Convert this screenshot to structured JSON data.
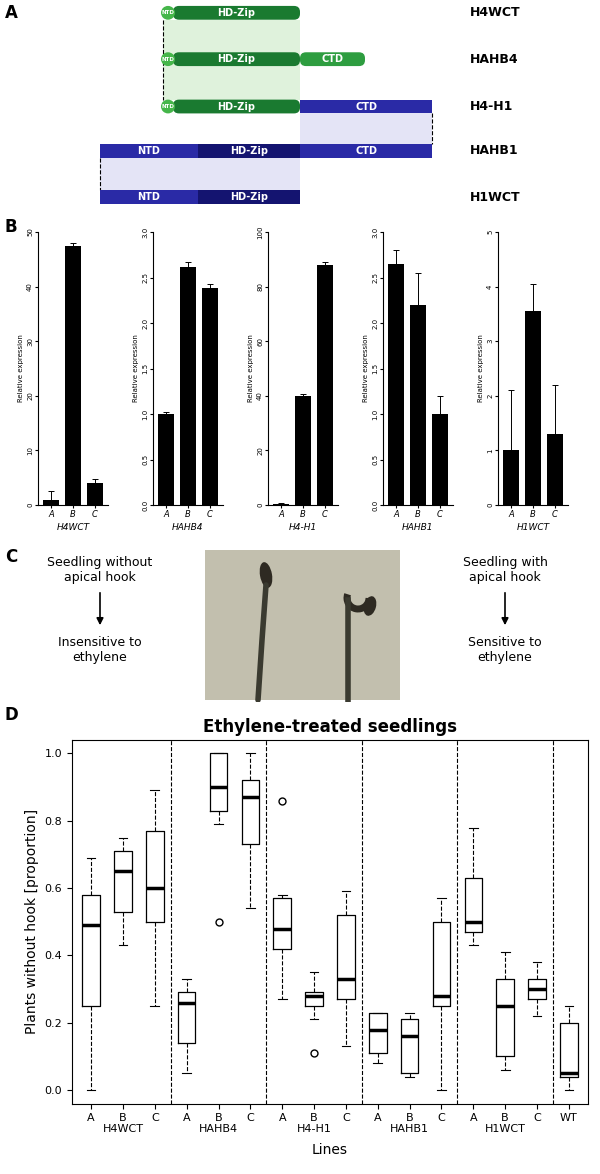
{
  "panel_labels": [
    "A",
    "B",
    "C",
    "D"
  ],
  "diagram": {
    "constructs": [
      {
        "name": "H4WCT",
        "domains": [
          {
            "label": "NTD",
            "color": "#45b64a"
          },
          {
            "label": "HD-Zip",
            "color": "#1a7a30"
          }
        ]
      },
      {
        "name": "HAHB4",
        "domains": [
          {
            "label": "NTD",
            "color": "#45b64a"
          },
          {
            "label": "HD-Zip",
            "color": "#1a7a30"
          },
          {
            "label": "CTD",
            "color": "#2e9d40"
          }
        ]
      },
      {
        "name": "H4-H1",
        "domains": [
          {
            "label": "NTD",
            "color": "#45b64a"
          },
          {
            "label": "HD-Zip",
            "color": "#1a7a30"
          },
          {
            "label": "CTD",
            "color": "#2a2aa6"
          }
        ]
      },
      {
        "name": "HAHB1",
        "domains": [
          {
            "label": "NTD",
            "color": "#2a2aa6"
          },
          {
            "label": "HD-Zip",
            "color": "#141470"
          },
          {
            "label": "CTD",
            "color": "#2a2aa6"
          }
        ]
      },
      {
        "name": "H1WCT",
        "domains": [
          {
            "label": "NTD",
            "color": "#2a2aa6"
          },
          {
            "label": "HD-Zip",
            "color": "#141470"
          }
        ]
      }
    ]
  },
  "seedling_panel": {
    "left": {
      "caption": "Seedling without\napical hook",
      "result": "Insensitive to\nethylene"
    },
    "right": {
      "caption": "Seedling with\napical hook",
      "result": "Sensitive to\nethylene"
    }
  },
  "chart_data": [
    {
      "type": "bar",
      "x_label": "H4WCT",
      "y_label": "Relative expression",
      "categories": [
        "A",
        "B",
        "C"
      ],
      "values": [
        1.0,
        47.5,
        4.0
      ],
      "errors": [
        1.5,
        0.5,
        0.8
      ],
      "color": "#000000",
      "ylim": [
        0,
        50
      ],
      "yticks": [
        0,
        10,
        20,
        30,
        40,
        50
      ]
    },
    {
      "type": "bar",
      "x_label": "HAHB4",
      "y_label": "Relative expression",
      "categories": [
        "A",
        "B",
        "C"
      ],
      "values": [
        1.0,
        2.62,
        2.38
      ],
      "errors": [
        0.02,
        0.05,
        0.05
      ],
      "color": "#000000",
      "ylim": [
        0,
        3
      ],
      "yticks": [
        {
          "value": 0,
          "label": "0.0"
        },
        0.5,
        {
          "value": 1,
          "label": "1.0"
        },
        1.5,
        {
          "value": 2,
          "label": "2.0"
        },
        2.5,
        {
          "value": 3,
          "label": "3.0"
        }
      ]
    },
    {
      "type": "bar",
      "x_label": "H4-H1",
      "y_label": "Relative expression",
      "categories": [
        "A",
        "B",
        "C"
      ],
      "values": [
        0.5,
        40.0,
        88.0
      ],
      "errors": [
        0.2,
        0.8,
        1.0
      ],
      "color": "#000000",
      "ylim": [
        0,
        100
      ],
      "yticks": [
        0,
        20,
        40,
        60,
        80,
        100
      ]
    },
    {
      "type": "bar",
      "x_label": "HAHB1",
      "y_label": "Relative expression",
      "categories": [
        "A",
        "B",
        "C"
      ],
      "values": [
        2.65,
        2.2,
        1.0
      ],
      "errors": [
        0.15,
        0.35,
        0.2
      ],
      "color": "#000000",
      "ylim": [
        0,
        3
      ],
      "yticks": [
        {
          "value": 0,
          "label": "0.0"
        },
        0.5,
        {
          "value": 1,
          "label": "1.0"
        },
        1.5,
        {
          "value": 2,
          "label": "2.0"
        },
        2.5,
        {
          "value": 3,
          "label": "3.0"
        }
      ]
    },
    {
      "type": "bar",
      "x_label": "H1WCT",
      "y_label": "Relative expression",
      "categories": [
        "A",
        "B",
        "C"
      ],
      "values": [
        1.0,
        3.55,
        1.3
      ],
      "errors": [
        1.1,
        0.5,
        0.9
      ],
      "color": "#000000",
      "ylim": [
        0,
        5
      ],
      "yticks": [
        0,
        1,
        2,
        3,
        4,
        5
      ]
    },
    {
      "type": "box",
      "title": "Ethylene-treated seedlings",
      "x_label": "Lines",
      "y_label": "Plants without hook [proportion]",
      "ylim": [
        -0.04,
        1.04
      ],
      "yticks": [
        {
          "value": 0,
          "label": "0.0"
        },
        0.2,
        0.4,
        0.6,
        0.8,
        {
          "value": 1,
          "label": "1.0"
        }
      ],
      "groups": [
        {
          "name": "H4WCT",
          "boxes": [
            {
              "category": "A",
              "min": 0.0,
              "q1": 0.25,
              "median": 0.49,
              "q3": 0.58,
              "max": 0.69,
              "outliers": []
            },
            {
              "category": "B",
              "min": 0.43,
              "q1": 0.53,
              "median": 0.65,
              "q3": 0.71,
              "max": 0.75,
              "outliers": []
            },
            {
              "category": "C",
              "min": 0.25,
              "q1": 0.5,
              "median": 0.6,
              "q3": 0.77,
              "max": 0.89,
              "outliers": []
            }
          ]
        },
        {
          "name": "HAHB4",
          "boxes": [
            {
              "category": "A",
              "min": 0.05,
              "q1": 0.14,
              "median": 0.26,
              "q3": 0.29,
              "max": 0.33,
              "outliers": []
            },
            {
              "category": "B",
              "min": 0.79,
              "q1": 0.83,
              "median": 0.9,
              "q3": 1.0,
              "max": 1.0,
              "outliers": [
                0.5
              ]
            },
            {
              "category": "C",
              "min": 0.54,
              "q1": 0.73,
              "median": 0.87,
              "q3": 0.92,
              "max": 1.0,
              "outliers": []
            }
          ]
        },
        {
          "name": "H4-H1",
          "boxes": [
            {
              "category": "A",
              "min": 0.27,
              "q1": 0.42,
              "median": 0.48,
              "q3": 0.57,
              "max": 0.58,
              "outliers": [
                0.86
              ]
            },
            {
              "category": "B",
              "min": 0.21,
              "q1": 0.25,
              "median": 0.28,
              "q3": 0.29,
              "max": 0.35,
              "outliers": [
                0.11
              ]
            },
            {
              "category": "C",
              "min": 0.13,
              "q1": 0.27,
              "median": 0.33,
              "q3": 0.52,
              "max": 0.59,
              "outliers": []
            }
          ]
        },
        {
          "name": "HAHB1",
          "boxes": [
            {
              "category": "A",
              "min": 0.08,
              "q1": 0.11,
              "median": 0.18,
              "q3": 0.23,
              "max": 0.23,
              "outliers": []
            },
            {
              "category": "B",
              "min": 0.04,
              "q1": 0.05,
              "median": 0.16,
              "q3": 0.21,
              "max": 0.23,
              "outliers": []
            },
            {
              "category": "C",
              "min": 0.0,
              "q1": 0.25,
              "median": 0.28,
              "q3": 0.5,
              "max": 0.57,
              "outliers": []
            }
          ]
        },
        {
          "name": "H1WCT",
          "boxes": [
            {
              "category": "A",
              "min": 0.43,
              "q1": 0.47,
              "median": 0.5,
              "q3": 0.63,
              "max": 0.78,
              "outliers": []
            },
            {
              "category": "B",
              "min": 0.06,
              "q1": 0.1,
              "median": 0.25,
              "q3": 0.33,
              "max": 0.41,
              "outliers": []
            },
            {
              "category": "C",
              "min": 0.22,
              "q1": 0.27,
              "median": 0.3,
              "q3": 0.33,
              "max": 0.38,
              "outliers": []
            }
          ]
        },
        {
          "name": null,
          "boxes": [
            {
              "category": "WT",
              "min": 0.0,
              "q1": 0.04,
              "median": 0.05,
              "q3": 0.2,
              "max": 0.25,
              "outliers": []
            }
          ]
        }
      ]
    }
  ]
}
